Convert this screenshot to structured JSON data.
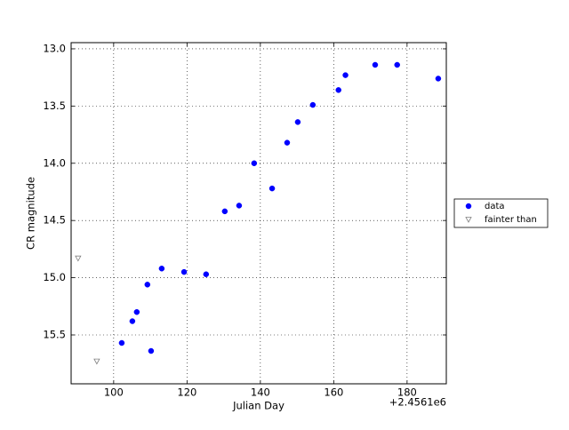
{
  "chart_data": {
    "type": "scatter",
    "xlabel": "Julian Day",
    "ylabel": "CR magnitude",
    "x_offset_label": "+2.4561e6",
    "xlim": [
      88.4,
      190.7
    ],
    "ylim": [
      15.927,
      12.946
    ],
    "inverted_y": true,
    "xticks": [
      100,
      120,
      140,
      160,
      180
    ],
    "yticks": [
      {
        "value": 13,
        "label": "13.0"
      },
      {
        "value": 13.5,
        "label": "13.5"
      },
      {
        "value": 14,
        "label": "14.0"
      },
      {
        "value": 14.5,
        "label": "14.5"
      },
      {
        "value": 15,
        "label": "15.0"
      },
      {
        "value": 15.5,
        "label": "15.5"
      }
    ],
    "grid": true,
    "legend": "outside right",
    "series": [
      {
        "name": "data",
        "color": "#0000ff",
        "marker": "o",
        "x": [
          102.2,
          105.1,
          106.3,
          109.2,
          110.2,
          113.1,
          119.2,
          125.2,
          130.3,
          134.2,
          138.3,
          143.2,
          147.3,
          150.2,
          154.3,
          161.3,
          163.2,
          171.3,
          177.3,
          188.5
        ],
        "values": [
          15.57,
          15.38,
          15.3,
          15.06,
          15.64,
          14.92,
          14.95,
          14.97,
          14.42,
          14.37,
          14.0,
          14.22,
          13.82,
          13.64,
          13.49,
          13.36,
          13.23,
          13.14,
          13.14,
          13.26
        ]
      },
      {
        "name": "fainter than",
        "color": "#808080",
        "marker": "v",
        "x": [
          90.3,
          95.4
        ],
        "values": [
          14.83,
          15.73
        ]
      }
    ]
  }
}
